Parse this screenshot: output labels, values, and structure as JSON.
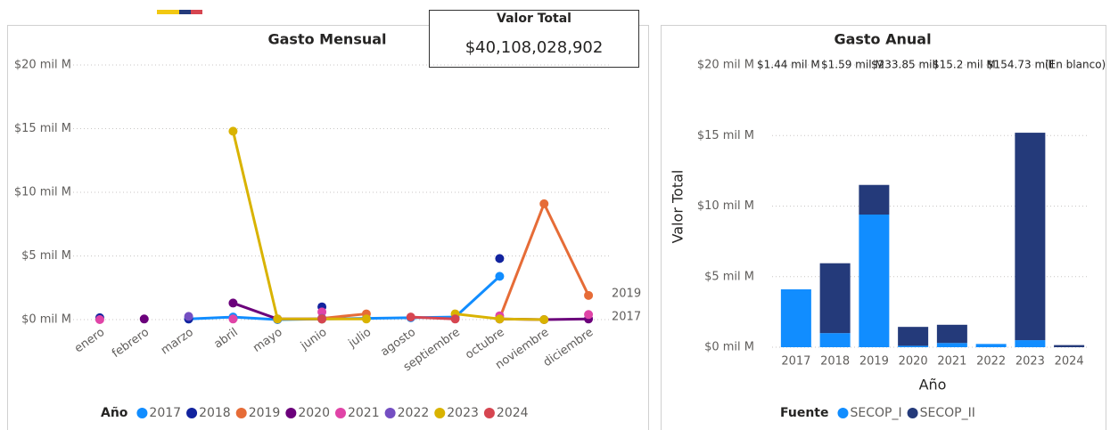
{
  "card": {
    "title": "Valor Total",
    "value": "$40,108,028,902"
  },
  "chart_data": [
    {
      "type": "line",
      "title": "Gasto Mensual",
      "legend_title": "Año",
      "legend": "bottom",
      "categories": [
        "enero",
        "febrero",
        "marzo",
        "abril",
        "mayo",
        "junio",
        "julio",
        "agosto",
        "septiembre",
        "octubre",
        "noviembre",
        "diciembre"
      ],
      "series": [
        {
          "name": "2017",
          "color": "#118DFF",
          "values": [
            null,
            null,
            0.05,
            0.2,
            0,
            0.05,
            0.1,
            0.15,
            0.2,
            3.4,
            null,
            null
          ]
        },
        {
          "name": "2018",
          "color": "#12239E",
          "values": [
            0.15,
            null,
            0.05,
            null,
            null,
            1.0,
            null,
            null,
            null,
            4.8,
            null,
            null
          ]
        },
        {
          "name": "2019",
          "color": "#E66C37",
          "values": [
            null,
            null,
            null,
            null,
            null,
            0.1,
            0.45,
            null,
            null,
            0.1,
            9.1,
            1.9
          ]
        },
        {
          "name": "2020",
          "color": "#6B007B",
          "values": [
            null,
            0.05,
            null,
            1.3,
            0.05,
            0.05,
            null,
            null,
            null,
            0.05,
            0,
            0.05
          ]
        },
        {
          "name": "2021",
          "color": "#E044A7",
          "values": [
            0,
            null,
            null,
            0.05,
            null,
            0.6,
            null,
            null,
            null,
            0.3,
            null,
            0.4
          ]
        },
        {
          "name": "2022",
          "color": "#744EC2",
          "values": [
            null,
            null,
            0.25,
            null,
            null,
            0.1,
            null,
            null,
            null,
            null,
            null,
            null
          ]
        },
        {
          "name": "2023",
          "color": "#D9B300",
          "values": [
            null,
            null,
            null,
            14.8,
            0.05,
            0.05,
            0.05,
            null,
            0.45,
            0.05,
            0,
            null
          ]
        },
        {
          "name": "2024",
          "color": "#D64550",
          "values": [
            null,
            null,
            null,
            null,
            null,
            0.05,
            null,
            0.2,
            0.05,
            null,
            null,
            null
          ]
        }
      ],
      "ylim": [
        0,
        20
      ],
      "yticks": [
        {
          "value": 0,
          "label": "$0 mil M"
        },
        {
          "value": 5,
          "label": "$5 mil M"
        },
        {
          "value": 10,
          "label": "$10 mil M"
        },
        {
          "value": 15,
          "label": "$15 mil M"
        },
        {
          "value": 20,
          "label": "$20 mil M"
        }
      ],
      "grid": true
    },
    {
      "type": "stacked_bar",
      "title": "Gasto Anual",
      "ylabel": "Valor Total",
      "xlabel": "Año",
      "legend_title": "Fuente",
      "legend": "bottom",
      "categories": [
        "2017",
        "2018",
        "2019",
        "2020",
        "2021",
        "2022",
        "2023",
        "2024"
      ],
      "series": [
        {
          "name": "SECOP_I",
          "color": "#118DFF",
          "values": [
            4.1,
            1.0,
            9.4,
            0.1,
            0.3,
            0.23,
            0.5,
            0
          ]
        },
        {
          "name": "SECOP_II",
          "color": "#243A7A",
          "values": [
            0,
            4.95,
            2.1,
            1.34,
            1.29,
            0,
            14.7,
            0.15
          ]
        }
      ],
      "annotations": [
        "$1.44 mil M",
        "$1.59 mil M",
        "$233.85 mill",
        "$15.2 mil M",
        "$154.73 mill",
        "(En blanco)"
      ],
      "ylim": [
        0,
        20
      ],
      "yticks": [
        {
          "value": 0,
          "label": "$0 mil M"
        },
        {
          "value": 5,
          "label": "$5 mil M"
        },
        {
          "value": 10,
          "label": "$10 mil M"
        },
        {
          "value": 15,
          "label": "$15 mil M"
        },
        {
          "value": 20,
          "label": "$20 mil M"
        }
      ],
      "grid": true
    }
  ]
}
